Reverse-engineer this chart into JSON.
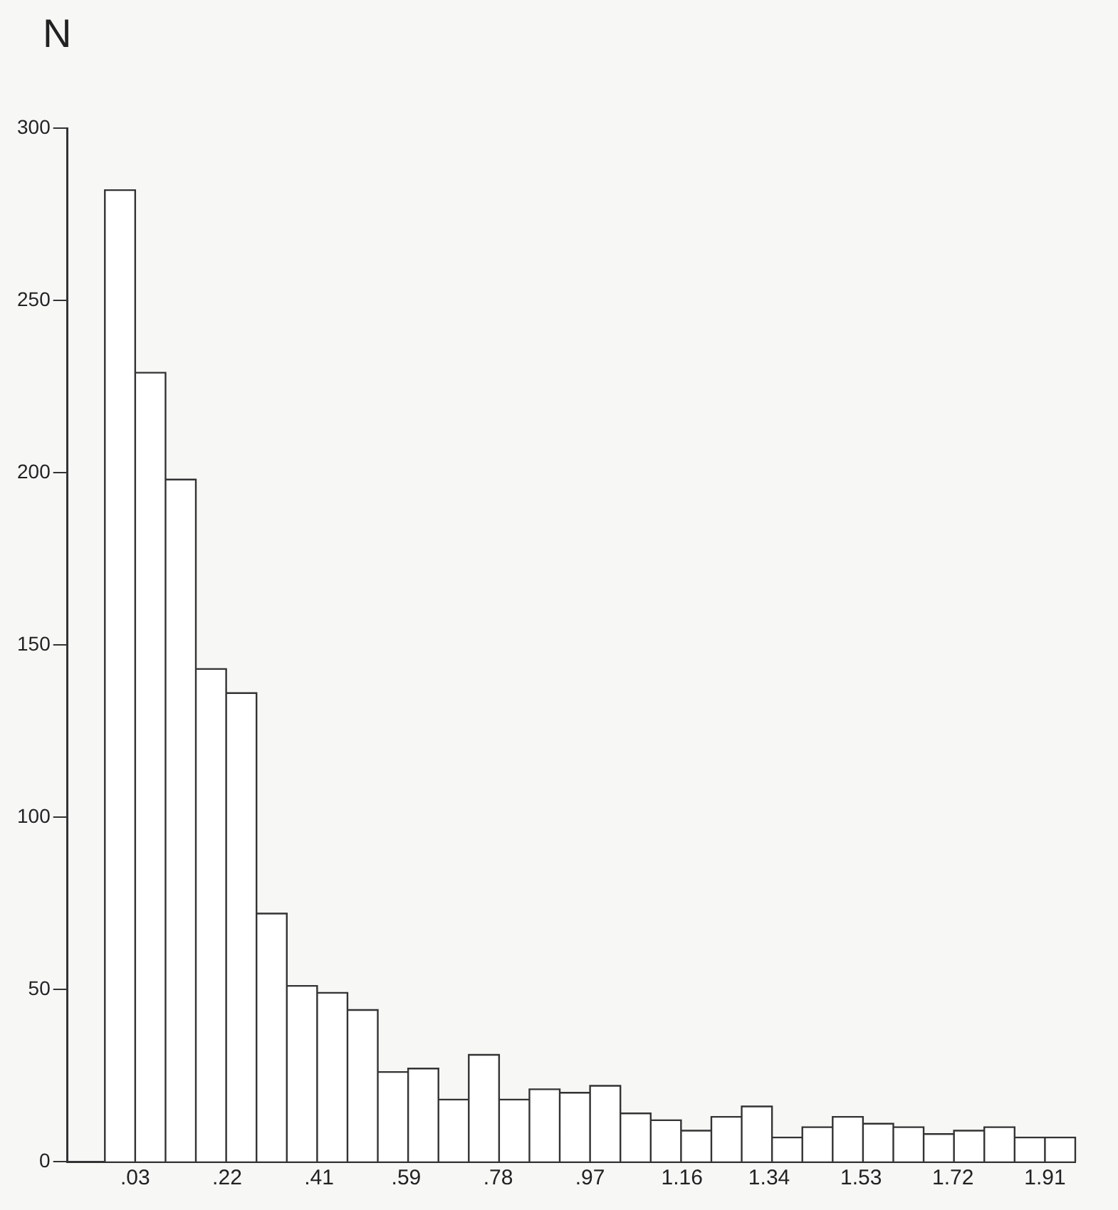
{
  "chart_data": {
    "type": "histogram",
    "ylabel": "N",
    "bins": [
      -0.0327,
      0.03,
      0.0927,
      0.1553,
      0.218,
      0.2807,
      0.3433,
      0.406,
      0.4687,
      0.5313,
      0.594,
      0.6567,
      0.7193,
      0.782,
      0.8447,
      0.9073,
      0.97,
      1.0327,
      1.0953,
      1.158,
      1.2207,
      1.2833,
      1.346,
      1.4087,
      1.4713,
      1.534,
      1.5967,
      1.6593,
      1.722,
      1.7847,
      1.8473,
      1.91,
      1.9727
    ],
    "values": [
      282,
      229,
      198,
      143,
      136,
      72,
      51,
      49,
      44,
      26,
      27,
      18,
      31,
      18,
      21,
      20,
      22,
      14,
      12,
      9,
      13,
      16,
      7,
      10,
      13,
      11,
      10,
      8,
      9,
      10,
      7,
      7
    ],
    "color": "#ffffff",
    "xlim": [
      -0.11,
      1.9727
    ],
    "xticks": [
      {
        "value": 0.03,
        "label": ".03"
      },
      {
        "value": 0.22,
        "label": ".22"
      },
      {
        "value": 0.41,
        "label": ".41"
      },
      {
        "value": 0.59,
        "label": ".59"
      },
      {
        "value": 0.78,
        "label": ".78"
      },
      {
        "value": 0.97,
        "label": ".97"
      },
      1.16,
      1.34,
      1.53,
      1.72,
      1.91
    ],
    "ylim": [
      0,
      300
    ],
    "yticks": [
      0,
      50,
      100,
      150,
      200,
      250,
      300
    ],
    "grid": false,
    "legend": false
  }
}
